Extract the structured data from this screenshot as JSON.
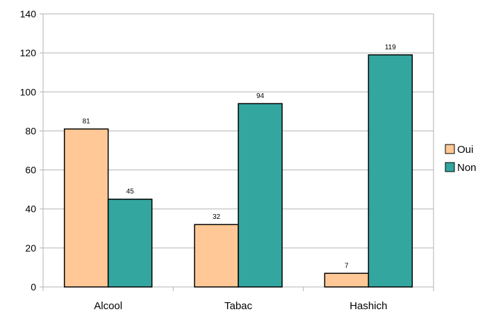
{
  "chart_data": {
    "type": "bar",
    "categories": [
      "Alcool",
      "Tabac",
      "Hashich"
    ],
    "series": [
      {
        "name": "Oui",
        "values": [
          81,
          32,
          7
        ],
        "color": "#ffc896"
      },
      {
        "name": "Non",
        "values": [
          45,
          94,
          119
        ],
        "color": "#33a6a0"
      }
    ],
    "ylim": [
      0,
      140
    ],
    "yticks": [
      0,
      20,
      40,
      60,
      80,
      100,
      120,
      140
    ],
    "grid": true,
    "legend_position": "right",
    "data_labels": true
  }
}
